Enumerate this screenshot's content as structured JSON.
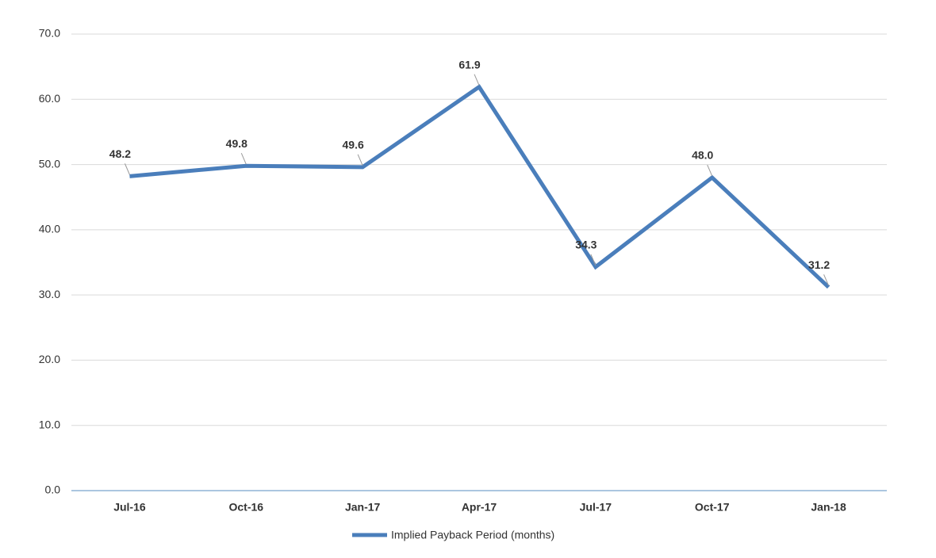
{
  "chart_data": {
    "type": "line",
    "categories": [
      "Jul-16",
      "Oct-16",
      "Jan-17",
      "Apr-17",
      "Jul-17",
      "Oct-17",
      "Jan-18"
    ],
    "series": [
      {
        "name": "Implied Payback Period (months)",
        "color": "#4a7ebb",
        "values": [
          48.2,
          49.8,
          49.6,
          61.9,
          34.3,
          48.0,
          31.2
        ],
        "value_labels": [
          "48.2",
          "49.8",
          "49.6",
          "61.9",
          "34.3",
          "48.0",
          "31.2"
        ]
      }
    ],
    "ylim": [
      0,
      70
    ],
    "yticks": [
      {
        "value": 0,
        "label": "0.0"
      },
      {
        "value": 10,
        "label": "10.0"
      },
      {
        "value": 20,
        "label": "20.0"
      },
      {
        "value": 30,
        "label": "30.0"
      },
      {
        "value": 40,
        "label": "40.0"
      },
      {
        "value": 50,
        "label": "50.0"
      },
      {
        "value": 60,
        "label": "60.0"
      },
      {
        "value": 70,
        "label": "70.0"
      }
    ],
    "grid": true,
    "legend": "bottom"
  }
}
